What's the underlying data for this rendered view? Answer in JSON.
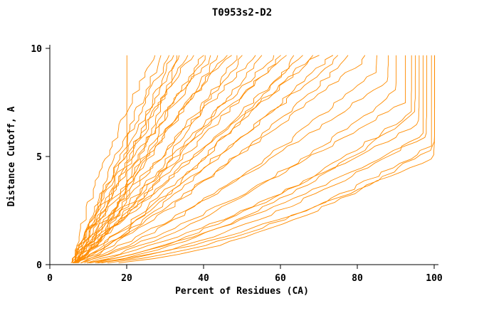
{
  "window": {
    "background": "#ffffff"
  },
  "chart_data": {
    "type": "line",
    "title": "T0953s2-D2",
    "xlabel": "Percent of Residues (CA)",
    "ylabel": "Distance Cutoff, A",
    "xlim": [
      0,
      100
    ],
    "ylim": [
      0,
      10
    ],
    "x_ticks": [
      0,
      20,
      40,
      60,
      80,
      100
    ],
    "y_ticks": [
      0,
      5,
      10
    ],
    "grid": false,
    "legend": "none",
    "line_color": "#ff8c00",
    "axis_color": "#000000",
    "text_color": "#000000",
    "description": "Bundle of prediction curves: percent of CA residues under each distance cutoff; curves start near x=6 at cutoff 0 and fan out, reaching the 10 A top edge between x=20 and x=100.",
    "curve_fields": [
      "x_start",
      "x_top",
      "exponent",
      "y_saturation",
      "jitter",
      "seed"
    ],
    "curves": [
      [
        6,
        20,
        0.85,
        2.8,
        0.4,
        1
      ],
      [
        5.5,
        30,
        1.05,
        10,
        0.8,
        2
      ],
      [
        6,
        32,
        1.1,
        10,
        0.9,
        3
      ],
      [
        6.5,
        33,
        0.95,
        10,
        1.0,
        4
      ],
      [
        5.8,
        35,
        1.15,
        10,
        0.8,
        5
      ],
      [
        6.2,
        36,
        1.0,
        10,
        1.0,
        6
      ],
      [
        6,
        38,
        1.2,
        10,
        0.9,
        7
      ],
      [
        6.4,
        40,
        0.9,
        10,
        1.1,
        8
      ],
      [
        5.6,
        42,
        1.1,
        10,
        0.9,
        9
      ],
      [
        6,
        44,
        1.25,
        10,
        1.0,
        10
      ],
      [
        6.3,
        45,
        0.95,
        10,
        0.8,
        11
      ],
      [
        5.9,
        47,
        1.05,
        10,
        1.0,
        12
      ],
      [
        6.1,
        48,
        1.15,
        10,
        0.9,
        13
      ],
      [
        6.5,
        50,
        0.85,
        10,
        1.0,
        14
      ],
      [
        5.7,
        52,
        1.0,
        10,
        0.9,
        15
      ],
      [
        6,
        55,
        1.1,
        10,
        1.0,
        16
      ],
      [
        6.2,
        57,
        0.9,
        10,
        0.9,
        17
      ],
      [
        6.4,
        60,
        1.05,
        10,
        1.1,
        18
      ],
      [
        5.8,
        62,
        0.95,
        10,
        0.9,
        19
      ],
      [
        6,
        64,
        1.1,
        10,
        1.0,
        20
      ],
      [
        6.1,
        66,
        0.8,
        10,
        1.0,
        21
      ],
      [
        6.3,
        68,
        1.0,
        10,
        0.9,
        22
      ],
      [
        5.9,
        70,
        0.9,
        10,
        1.0,
        23
      ],
      [
        6,
        72,
        1.05,
        10,
        0.9,
        24
      ],
      [
        6.2,
        75,
        0.85,
        10,
        1.0,
        25
      ],
      [
        6.4,
        78,
        0.95,
        10,
        0.9,
        26
      ],
      [
        5.8,
        80,
        0.8,
        10,
        1.0,
        27
      ],
      [
        6,
        82,
        0.9,
        9.5,
        0.9,
        28
      ],
      [
        6.1,
        85,
        0.75,
        9.0,
        1.0,
        29
      ],
      [
        6.3,
        88,
        0.85,
        8.5,
        0.9,
        30
      ],
      [
        5.9,
        90,
        0.7,
        8.0,
        1.0,
        31
      ],
      [
        6,
        92,
        0.8,
        7.5,
        0.9,
        32
      ],
      [
        6.2,
        94,
        0.65,
        7.0,
        1.0,
        33
      ],
      [
        6.4,
        96,
        0.75,
        6.5,
        0.9,
        34
      ],
      [
        5.8,
        97,
        0.6,
        6.0,
        1.0,
        35
      ],
      [
        6,
        98,
        0.7,
        6.0,
        0.9,
        36
      ],
      [
        6.1,
        99,
        0.55,
        5.5,
        1.0,
        37
      ],
      [
        6.3,
        100,
        0.65,
        5.0,
        0.9,
        38
      ],
      [
        5.9,
        100,
        0.5,
        5.5,
        1.0,
        39
      ],
      [
        6,
        95,
        0.6,
        7.0,
        0.9,
        40
      ],
      [
        6,
        28,
        1.3,
        10,
        0.8,
        41
      ],
      [
        6,
        34,
        0.7,
        10,
        0.9,
        42
      ]
    ]
  }
}
